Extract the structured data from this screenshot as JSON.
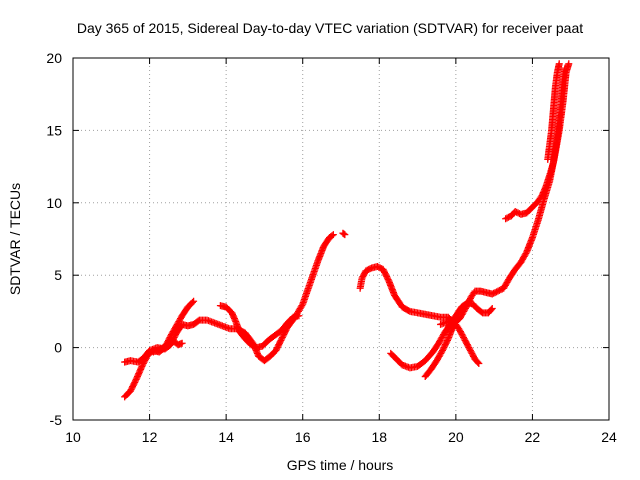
{
  "chart_data": {
    "type": "scatter",
    "title": "Day 365 of 2015, Sidereal Day-to-day VTEC variation (SDTVAR) for receiver paat",
    "xlabel": "GPS time / hours",
    "ylabel": "SDTVAR / TECUs",
    "xlim": [
      10,
      24
    ],
    "ylim": [
      -5,
      20
    ],
    "x_ticks": [
      10,
      12,
      14,
      16,
      18,
      20,
      22,
      24
    ],
    "y_ticks": [
      -5,
      0,
      5,
      10,
      15,
      20
    ],
    "grid": true,
    "marker": "+",
    "marker_color": "#ff0000",
    "series": [
      {
        "points": [
          [
            11.35,
            -1.0
          ],
          [
            11.5,
            -0.9
          ],
          [
            11.7,
            -1.0
          ],
          [
            11.85,
            -0.7
          ],
          [
            12.0,
            -0.2
          ],
          [
            12.2,
            0.0
          ],
          [
            12.4,
            -0.1
          ],
          [
            12.55,
            0.2
          ],
          [
            12.7,
            1.0
          ],
          [
            12.85,
            1.6
          ],
          [
            13.0,
            1.5
          ],
          [
            13.15,
            1.6
          ],
          [
            13.3,
            1.9
          ],
          [
            13.5,
            1.9
          ],
          [
            13.7,
            1.7
          ],
          [
            13.9,
            1.5
          ],
          [
            14.1,
            1.3
          ],
          [
            14.3,
            1.3
          ],
          [
            14.5,
            1.0
          ],
          [
            14.7,
            0.3
          ],
          [
            14.85,
            -0.6
          ],
          [
            15.0,
            -0.9
          ],
          [
            15.15,
            -0.6
          ],
          [
            15.3,
            -0.2
          ],
          [
            15.45,
            0.6
          ],
          [
            15.6,
            1.4
          ],
          [
            15.8,
            2.1
          ],
          [
            16.0,
            3.0
          ],
          [
            16.2,
            4.5
          ],
          [
            16.4,
            6.0
          ],
          [
            16.55,
            7.0
          ],
          [
            16.7,
            7.6
          ],
          [
            16.8,
            7.8
          ]
        ]
      },
      {
        "points": [
          [
            11.35,
            -3.4
          ],
          [
            11.5,
            -3.0
          ],
          [
            11.65,
            -2.2
          ],
          [
            11.8,
            -1.3
          ],
          [
            11.95,
            -0.5
          ],
          [
            12.1,
            -0.2
          ],
          [
            12.25,
            -0.3
          ],
          [
            12.4,
            0.0
          ],
          [
            12.55,
            0.8
          ],
          [
            12.7,
            1.5
          ],
          [
            12.85,
            2.2
          ],
          [
            13.0,
            2.8
          ],
          [
            13.15,
            3.2
          ]
        ]
      },
      {
        "points": [
          [
            12.1,
            -0.3
          ],
          [
            12.3,
            -0.1
          ],
          [
            12.45,
            0.2
          ],
          [
            12.6,
            0.5
          ],
          [
            12.75,
            0.2
          ],
          [
            12.85,
            0.3
          ]
        ]
      },
      {
        "points": [
          [
            13.85,
            2.9
          ],
          [
            14.0,
            2.8
          ],
          [
            14.15,
            2.4
          ],
          [
            14.25,
            1.8
          ],
          [
            14.35,
            1.1
          ],
          [
            14.5,
            0.6
          ],
          [
            14.65,
            0.2
          ],
          [
            14.8,
            0.0
          ],
          [
            14.95,
            0.1
          ],
          [
            15.1,
            0.5
          ],
          [
            15.3,
            0.9
          ],
          [
            15.45,
            1.2
          ],
          [
            15.6,
            1.7
          ],
          [
            15.75,
            2.1
          ],
          [
            15.9,
            2.2
          ]
        ]
      },
      {
        "points": [
          [
            17.05,
            7.9
          ],
          [
            17.1,
            7.8
          ]
        ]
      },
      {
        "points": [
          [
            17.5,
            4.1
          ],
          [
            17.55,
            4.8
          ],
          [
            17.65,
            5.3
          ],
          [
            17.8,
            5.5
          ],
          [
            17.95,
            5.6
          ],
          [
            18.1,
            5.4
          ],
          [
            18.25,
            4.6
          ],
          [
            18.4,
            3.6
          ],
          [
            18.6,
            2.8
          ],
          [
            18.8,
            2.5
          ],
          [
            19.0,
            2.4
          ],
          [
            19.2,
            2.3
          ],
          [
            19.4,
            2.2
          ],
          [
            19.6,
            2.1
          ],
          [
            19.8,
            2.1
          ],
          [
            19.95,
            1.7
          ],
          [
            20.1,
            2.0
          ],
          [
            20.25,
            2.7
          ],
          [
            20.4,
            3.5
          ],
          [
            20.5,
            3.9
          ],
          [
            20.65,
            3.9
          ],
          [
            20.8,
            3.8
          ],
          [
            20.95,
            3.7
          ],
          [
            21.1,
            3.9
          ],
          [
            21.25,
            4.1
          ],
          [
            21.4,
            4.8
          ],
          [
            21.55,
            5.4
          ],
          [
            21.7,
            5.9
          ],
          [
            21.85,
            6.6
          ],
          [
            22.0,
            7.6
          ],
          [
            22.15,
            8.8
          ],
          [
            22.3,
            10.2
          ],
          [
            22.45,
            11.5
          ],
          [
            22.6,
            13.5
          ],
          [
            22.7,
            15.0
          ],
          [
            22.8,
            17.0
          ],
          [
            22.88,
            19.0
          ],
          [
            22.95,
            19.6
          ]
        ]
      },
      {
        "points": [
          [
            18.3,
            -0.4
          ],
          [
            18.45,
            -0.8
          ],
          [
            18.6,
            -1.2
          ],
          [
            18.8,
            -1.4
          ],
          [
            19.0,
            -1.3
          ],
          [
            19.2,
            -0.9
          ],
          [
            19.4,
            -0.3
          ],
          [
            19.55,
            0.3
          ],
          [
            19.7,
            1.0
          ],
          [
            19.85,
            1.6
          ],
          [
            20.0,
            2.2
          ],
          [
            20.15,
            2.8
          ],
          [
            20.3,
            3.1
          ],
          [
            20.45,
            3.0
          ],
          [
            20.55,
            2.7
          ],
          [
            20.7,
            2.4
          ],
          [
            20.85,
            2.4
          ],
          [
            20.95,
            2.7
          ]
        ]
      },
      {
        "points": [
          [
            19.2,
            -2.0
          ],
          [
            19.35,
            -1.5
          ],
          [
            19.5,
            -0.9
          ],
          [
            19.65,
            -0.2
          ],
          [
            19.8,
            0.6
          ],
          [
            19.9,
            1.3
          ],
          [
            20.0,
            1.6
          ],
          [
            20.1,
            1.2
          ],
          [
            20.2,
            0.7
          ],
          [
            20.3,
            0.2
          ],
          [
            20.4,
            -0.3
          ],
          [
            20.5,
            -0.8
          ],
          [
            20.6,
            -1.1
          ]
        ]
      },
      {
        "points": [
          [
            19.6,
            1.6
          ],
          [
            19.8,
            1.8
          ],
          [
            19.95,
            1.9
          ]
        ]
      },
      {
        "points": [
          [
            21.3,
            8.9
          ],
          [
            21.45,
            9.1
          ],
          [
            21.55,
            9.4
          ],
          [
            21.7,
            9.2
          ],
          [
            21.85,
            9.3
          ],
          [
            22.0,
            9.7
          ],
          [
            22.15,
            10.1
          ],
          [
            22.25,
            10.5
          ],
          [
            22.35,
            11.1
          ],
          [
            22.45,
            11.9
          ],
          [
            22.55,
            12.8
          ],
          [
            22.65,
            14.5
          ],
          [
            22.75,
            17.0
          ],
          [
            22.8,
            18.5
          ],
          [
            22.85,
            19.3
          ]
        ]
      },
      {
        "points": [
          [
            22.4,
            13.0
          ],
          [
            22.45,
            14.0
          ],
          [
            22.5,
            15.0
          ],
          [
            22.55,
            16.5
          ],
          [
            22.6,
            18.0
          ],
          [
            22.65,
            19.0
          ],
          [
            22.7,
            19.6
          ]
        ]
      }
    ]
  }
}
